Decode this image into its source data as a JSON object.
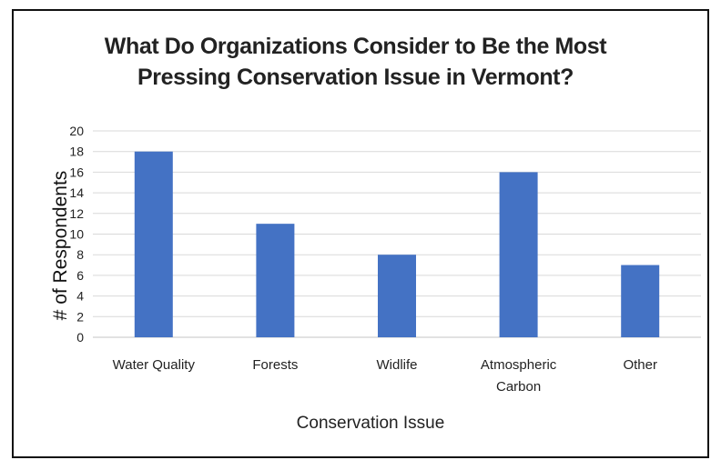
{
  "chart_data": {
    "type": "bar",
    "title_lines": [
      "What Do Organizations Consider to Be the Most",
      "Pressing Conservation Issue in Vermont?"
    ],
    "xlabel": "Conservation Issue",
    "ylabel": "# of Respondents",
    "categories": [
      "Water Quality",
      "Forests",
      "Widlife",
      "Atmospheric Carbon",
      "Other"
    ],
    "category_label_lines": [
      [
        "Water Quality"
      ],
      [
        "Forests"
      ],
      [
        "Widlife"
      ],
      [
        "Atmospheric",
        "Carbon"
      ],
      [
        "Other"
      ]
    ],
    "values": [
      18,
      11,
      8,
      16,
      7
    ],
    "ylim": [
      0,
      20
    ],
    "y_ticks": [
      0,
      2,
      4,
      6,
      8,
      10,
      12,
      14,
      16,
      18,
      20
    ],
    "grid": true,
    "legend": "none",
    "bar_color": "#4472C4",
    "grid_color": "#d9d9d9",
    "text_color": "#222222"
  }
}
